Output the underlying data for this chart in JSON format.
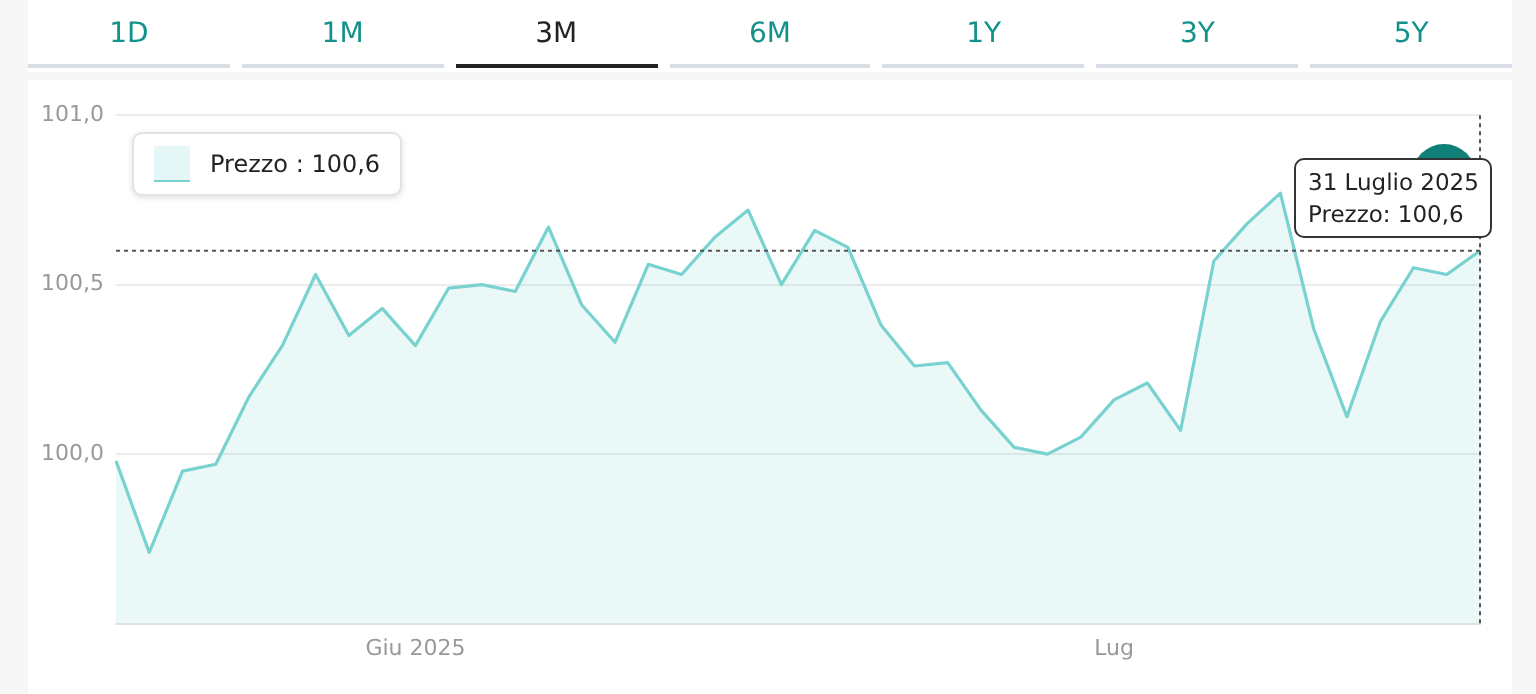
{
  "chart_data": {
    "type": "area",
    "categories": [
      null,
      null,
      null,
      null,
      null,
      null,
      null,
      null,
      null,
      "Giu 2025",
      null,
      null,
      null,
      null,
      null,
      null,
      null,
      null,
      null,
      null,
      null,
      null,
      null,
      null,
      null,
      null,
      null,
      null,
      null,
      null,
      "Lug",
      null,
      null,
      null,
      null,
      null,
      null,
      null,
      null,
      null,
      null,
      null
    ],
    "series": [
      {
        "name": "Prezzo : 100,6",
        "color": "#78d2cf",
        "values": [
          99.98,
          99.71,
          99.95,
          99.97,
          100.17,
          100.32,
          100.53,
          100.35,
          100.43,
          100.32,
          100.49,
          100.5,
          100.48,
          100.67,
          100.44,
          100.33,
          100.56,
          100.53,
          100.64,
          100.72,
          100.5,
          100.66,
          100.61,
          100.38,
          100.26,
          100.27,
          100.13,
          100.02,
          100.0,
          100.05,
          100.16,
          100.21,
          100.07,
          100.57,
          100.68,
          100.77,
          100.37,
          100.11,
          100.39,
          100.55,
          100.53,
          100.6
        ]
      }
    ],
    "ylim": [
      99.5,
      101
    ],
    "yticks": [
      {
        "value": 100,
        "label": "100,0"
      },
      {
        "value": 100.5,
        "label": "100,5"
      },
      {
        "value": 101,
        "label": "101,0"
      }
    ],
    "grid": "y",
    "legend": "top left",
    "marker": "none",
    "line_style": "solid",
    "ref_lines": [
      {
        "axis": "y",
        "value": 100.6,
        "color": "#555555",
        "line_style": "dotted"
      }
    ],
    "annotations": [
      "1D",
      "1M",
      "3M",
      "6M",
      "1Y",
      "3Y",
      "5Y",
      {
        "text": "31 Luglio 2025\nPrezzo: 100,6",
        "y": 100.6
      }
    ]
  }
}
